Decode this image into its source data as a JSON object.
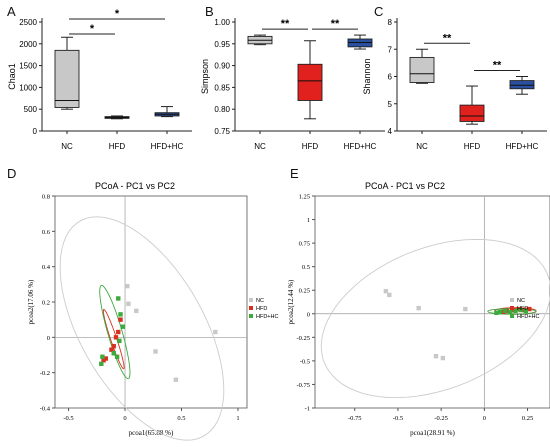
{
  "chart_data": [
    {
      "panel": "A",
      "type": "box",
      "ylabel": "Chao1",
      "categories": [
        "NC",
        "HFD",
        "HFD+HC"
      ],
      "yticks": [
        "0",
        "500",
        "1000",
        "1500",
        "2000",
        "2500"
      ],
      "ylim": [
        0,
        2500
      ],
      "colors": [
        "#c8c8c8",
        "#e0211d",
        "#2b4f9f"
      ],
      "boxes": [
        {
          "min": 500,
          "q1": 540,
          "median": 700,
          "q3": 1850,
          "max": 2150
        },
        {
          "min": 280,
          "q1": 290,
          "median": 310,
          "q3": 330,
          "max": 345
        },
        {
          "min": 330,
          "q1": 345,
          "median": 385,
          "q3": 420,
          "max": 560
        }
      ],
      "brackets": [
        {
          "from": 0,
          "to": 1,
          "label": "*"
        },
        {
          "from": 0,
          "to": 2,
          "label": "*"
        }
      ]
    },
    {
      "panel": "B",
      "type": "box",
      "ylabel": "Simpson",
      "categories": [
        "NC",
        "HFD",
        "HFD+HC"
      ],
      "yticks": [
        "0.75",
        "0.80",
        "0.85",
        "0.90",
        "0.95",
        "1.00"
      ],
      "ylim": [
        0.75,
        1.0
      ],
      "colors": [
        "#c8c8c8",
        "#e0211d",
        "#2b4f9f"
      ],
      "boxes": [
        {
          "min": 0.948,
          "q1": 0.95,
          "median": 0.958,
          "q3": 0.967,
          "max": 0.97
        },
        {
          "min": 0.778,
          "q1": 0.82,
          "median": 0.865,
          "q3": 0.903,
          "max": 0.957
        },
        {
          "min": 0.938,
          "q1": 0.943,
          "median": 0.953,
          "q3": 0.961,
          "max": 0.97
        }
      ],
      "brackets": [
        {
          "from": 0,
          "to": 1,
          "label": "**"
        },
        {
          "from": 1,
          "to": 2,
          "label": "**"
        }
      ]
    },
    {
      "panel": "C",
      "type": "box",
      "ylabel": "Shannon",
      "categories": [
        "NC",
        "HFD",
        "HFD+HC"
      ],
      "yticks": [
        "4",
        "5",
        "6",
        "7",
        "8"
      ],
      "ylim": [
        4,
        8
      ],
      "colors": [
        "#c8c8c8",
        "#e0211d",
        "#2b4f9f"
      ],
      "boxes": [
        {
          "min": 5.75,
          "q1": 5.78,
          "median": 6.1,
          "q3": 6.7,
          "max": 7.0
        },
        {
          "min": 4.25,
          "q1": 4.35,
          "median": 4.55,
          "q3": 4.95,
          "max": 5.65
        },
        {
          "min": 5.35,
          "q1": 5.55,
          "median": 5.68,
          "q3": 5.85,
          "max": 6.0
        }
      ],
      "brackets": [
        {
          "from": 0,
          "to": 1,
          "label": "**"
        },
        {
          "from": 1,
          "to": 2,
          "label": "**"
        }
      ]
    },
    {
      "panel": "D",
      "type": "scatter",
      "title": "PCoA - PC1 vs PC2",
      "xlabel": "pcoa1(65.88 %)",
      "ylabel": "pcoa2(17.06 %)",
      "xlim": [
        -0.62,
        1.08
      ],
      "ylim": [
        -0.4,
        0.8
      ],
      "xticks": [
        -0.5,
        0,
        0.5,
        1
      ],
      "xtick_labels": [
        "-0.5",
        "0",
        "0.5",
        "1"
      ],
      "yticks": [
        0.8,
        0.6,
        0.4,
        0.2,
        0,
        -0.2,
        -0.4
      ],
      "ytick_labels": [
        "0.8",
        "0.6",
        "0.4",
        "0.2",
        "0",
        "-0.2",
        "-0.4"
      ],
      "legend": [
        "NC",
        "HFD",
        "HFD+HC"
      ],
      "series": [
        {
          "name": "NC",
          "color": "#c8c8c8",
          "points": [
            [
              0.02,
              0.29
            ],
            [
              0.03,
              0.19
            ],
            [
              0.1,
              0.15
            ],
            [
              0.27,
              -0.08
            ],
            [
              0.45,
              -0.24
            ],
            [
              0.8,
              0.03
            ]
          ]
        },
        {
          "name": "HFD",
          "color": "#d7301f",
          "points": [
            [
              -0.17,
              -0.12
            ],
            [
              -0.19,
              -0.13
            ],
            [
              -0.12,
              -0.07
            ],
            [
              -0.1,
              -0.05
            ],
            [
              -0.08,
              0.0
            ],
            [
              -0.06,
              0.03
            ],
            [
              -0.04,
              0.1
            ]
          ]
        },
        {
          "name": "HFD+HC",
          "color": "#3daa3d",
          "points": [
            [
              -0.06,
              0.22
            ],
            [
              -0.04,
              0.13
            ],
            [
              -0.02,
              0.06
            ],
            [
              -0.05,
              -0.02
            ],
            [
              -0.07,
              -0.11
            ],
            [
              -0.1,
              -0.09
            ],
            [
              -0.2,
              -0.11
            ],
            [
              -0.21,
              -0.15
            ]
          ]
        }
      ],
      "ellipses": [
        {
          "group": "NC",
          "color": "#cccccc",
          "cx": 0.15,
          "cy": 0.05,
          "rx": 0.85,
          "ry": 0.45,
          "angle": -38
        },
        {
          "group": "HFD",
          "color": "#d7301f",
          "cx": -0.1,
          "cy": -0.01,
          "rx": 0.19,
          "ry": 0.025,
          "angle": -62
        },
        {
          "group": "HFD+HC",
          "color": "#3daa3d",
          "cx": -0.09,
          "cy": 0.03,
          "rx": 0.29,
          "ry": 0.06,
          "angle": -65
        }
      ]
    },
    {
      "panel": "E",
      "type": "scatter",
      "title": "PCoA - PC1 vs PC2",
      "xlabel": "pcoa1(28.91 %)",
      "ylabel": "pcoa2(12.44 %)",
      "xlim": [
        -0.98,
        0.38
      ],
      "ylim": [
        -1.0,
        1.25
      ],
      "xticks": [
        -0.75,
        -0.5,
        -0.25,
        0,
        0.25
      ],
      "xtick_labels": [
        "-0.75",
        "-0.5",
        "-0.25",
        "0",
        "0.25"
      ],
      "yticks": [
        1.25,
        1,
        0.75,
        0.5,
        0.25,
        0,
        -0.25,
        -0.5,
        -0.75,
        -1
      ],
      "ytick_labels": [
        "1.25",
        "1",
        "0.75",
        "0.5",
        "0.25",
        "0",
        "-0.25",
        "-0.5",
        "-0.75",
        "-1"
      ],
      "legend": [
        "NC",
        "HFD",
        "HFD+HC"
      ],
      "series": [
        {
          "name": "NC",
          "color": "#c8c8c8",
          "points": [
            [
              -0.57,
              0.24
            ],
            [
              -0.55,
              0.2
            ],
            [
              -0.38,
              0.06
            ],
            [
              -0.28,
              -0.45
            ],
            [
              -0.24,
              -0.47
            ],
            [
              -0.11,
              0.05
            ]
          ]
        },
        {
          "name": "HFD",
          "color": "#d7301f",
          "points": [
            [
              0.13,
              0.03
            ],
            [
              0.17,
              0.04
            ],
            [
              0.2,
              0.05
            ],
            [
              0.23,
              0.04
            ],
            [
              0.26,
              0.05
            ],
            [
              0.11,
              0.02
            ]
          ]
        },
        {
          "name": "HFD+HC",
          "color": "#3daa3d",
          "points": [
            [
              0.09,
              0.02
            ],
            [
              0.12,
              0.03
            ],
            [
              0.15,
              0.02
            ],
            [
              0.18,
              0.03
            ],
            [
              0.21,
              0.04
            ],
            [
              0.24,
              0.03
            ],
            [
              0.07,
              0.01
            ]
          ]
        }
      ],
      "ellipses": [
        {
          "group": "NC",
          "color": "#cccccc",
          "cx": -0.28,
          "cy": -0.05,
          "rx": 0.58,
          "ry": 0.9,
          "angle": -28
        },
        {
          "group": "HFD",
          "color": "#d7301f",
          "cx": 0.18,
          "cy": 0.03,
          "rx": 0.12,
          "ry": 0.035,
          "angle": 0
        },
        {
          "group": "HFD+HC",
          "color": "#3daa3d",
          "cx": 0.16,
          "cy": 0.025,
          "rx": 0.14,
          "ry": 0.03,
          "angle": 0
        }
      ]
    }
  ]
}
